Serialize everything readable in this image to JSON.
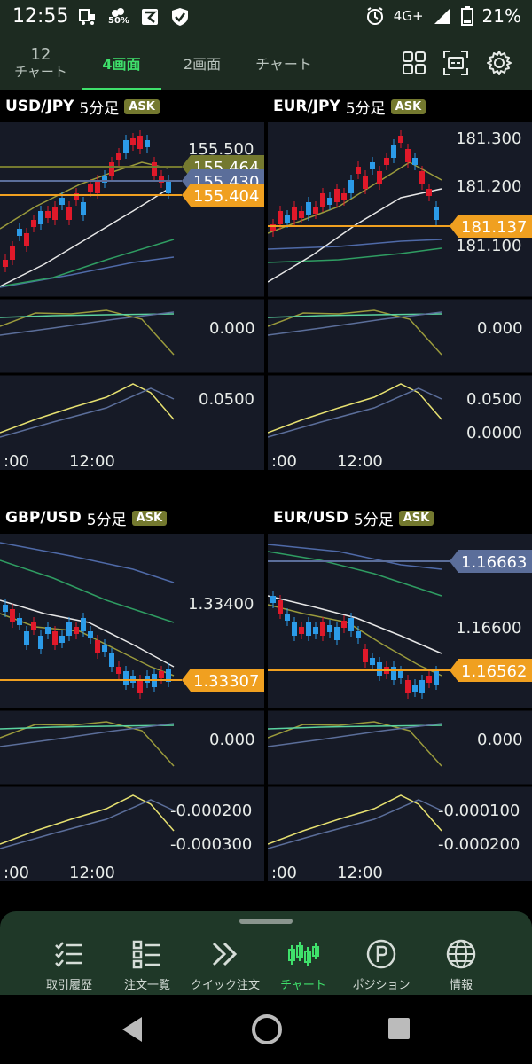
{
  "status_bar": {
    "time": "12:55",
    "network": "4G+",
    "battery": "21%",
    "saver_pct": "50%"
  },
  "tabs": [
    {
      "num": "12",
      "sub": "チャート"
    },
    {
      "label": "4画面"
    },
    {
      "label": "2画面"
    },
    {
      "label": "チャート"
    }
  ],
  "header_icons": [
    "grid-icon",
    "fullscreen-icon",
    "gear-icon"
  ],
  "panels": [
    {
      "pair": "USD/JPY",
      "timeframe": "5分足",
      "side": "ASK",
      "price_ticks": [
        "155.500",
        "155.464",
        "155.430",
        "155.404"
      ],
      "current_price": "155.404",
      "osc1_ticks": [
        "0.000"
      ],
      "osc2_ticks": [
        "0.0500"
      ],
      "time_ticks": [
        ":00",
        "12:00"
      ]
    },
    {
      "pair": "EUR/JPY",
      "timeframe": "5分足",
      "side": "ASK",
      "price_ticks": [
        "181.300",
        "181.200",
        "181.137",
        "181.100"
      ],
      "current_price": "181.137",
      "osc1_ticks": [
        "0.000"
      ],
      "osc2_ticks": [
        "0.0500",
        "0.0000"
      ],
      "time_ticks": [
        ":00",
        "12:00"
      ]
    },
    {
      "pair": "GBP/USD",
      "timeframe": "5分足",
      "side": "ASK",
      "price_ticks": [
        "1.33400",
        "1.33307"
      ],
      "current_price": "1.33307",
      "osc1_ticks": [
        "0.000"
      ],
      "osc2_ticks": [
        "-0.000200",
        "-0.000300"
      ],
      "time_ticks": [
        ":00",
        "12:00"
      ]
    },
    {
      "pair": "EUR/USD",
      "timeframe": "5分足",
      "side": "ASK",
      "price_ticks": [
        "1.16663",
        "1.16600",
        "1.16562"
      ],
      "current_price": "1.16562",
      "osc1_ticks": [
        "0.000"
      ],
      "osc2_ticks": [
        "-0.000100",
        "-0.000200"
      ],
      "time_ticks": [
        ":00",
        "12:00"
      ]
    }
  ],
  "bottom_nav": [
    {
      "label": "取引履歴",
      "icon": "checklist-icon"
    },
    {
      "label": "注文一覧",
      "icon": "list-icon"
    },
    {
      "label": "クイック注文",
      "icon": "double-chevron-icon"
    },
    {
      "label": "チャート",
      "icon": "candlestick-icon",
      "active": true
    },
    {
      "label": "ポジション",
      "icon": "position-p-icon"
    },
    {
      "label": "情報",
      "icon": "globe-icon"
    }
  ],
  "colors": {
    "accent": "#3fe06b",
    "up": "#e0192a",
    "down": "#2b9be8",
    "price_line": "#f0a020",
    "chart_bg": "#161a26",
    "nav_bg": "#1f3828"
  }
}
